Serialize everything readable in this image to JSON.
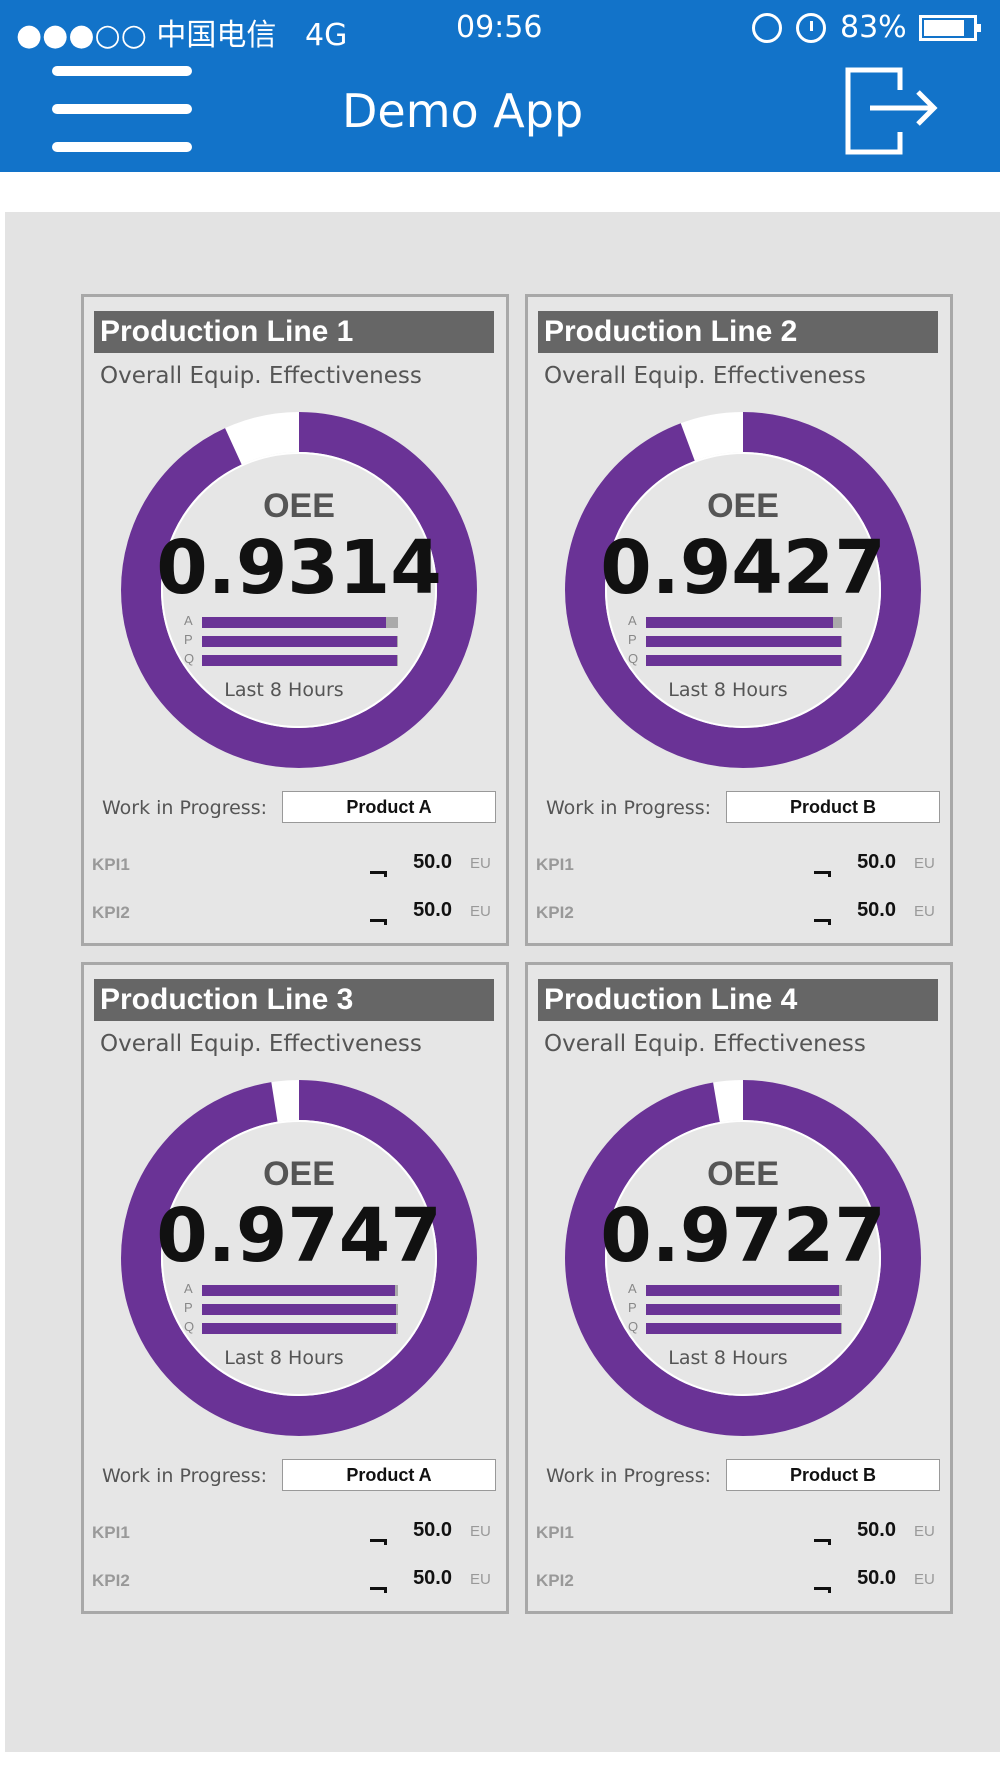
{
  "status_bar": {
    "carrier": "●●●○○ 中国电信",
    "network": "4G",
    "time": "09:56",
    "battery": "83%"
  },
  "header": {
    "title": "Demo App"
  },
  "colors": {
    "header": "#1273c9",
    "gauge": "#6a3396",
    "panel_header": "#666666"
  },
  "panels": [
    {
      "title": "Production Line 1",
      "subtitle": "Overall Equip. Effectiveness",
      "oee_label": "OEE",
      "oee": "0.9314",
      "oee_fraction": 0.9314,
      "bars": [
        {
          "letter": "A",
          "fraction": 0.94
        },
        {
          "letter": "P",
          "fraction": 0.995
        },
        {
          "letter": "Q",
          "fraction": 0.995
        }
      ],
      "period": "Last 8 Hours",
      "wip_label": "Work in Progress:",
      "wip": "Product A",
      "kpis": [
        {
          "name": "KPI1",
          "value": "50.0",
          "unit": "EU"
        },
        {
          "name": "KPI2",
          "value": "50.0",
          "unit": "EU"
        }
      ]
    },
    {
      "title": "Production Line 2",
      "subtitle": "Overall Equip. Effectiveness",
      "oee_label": "OEE",
      "oee": "0.9427",
      "oee_fraction": 0.9427,
      "bars": [
        {
          "letter": "A",
          "fraction": 0.955
        },
        {
          "letter": "P",
          "fraction": 0.995
        },
        {
          "letter": "Q",
          "fraction": 0.995
        }
      ],
      "period": "Last 8 Hours",
      "wip_label": "Work in Progress:",
      "wip": "Product B",
      "kpis": [
        {
          "name": "KPI1",
          "value": "50.0",
          "unit": "EU"
        },
        {
          "name": "KPI2",
          "value": "50.0",
          "unit": "EU"
        }
      ]
    },
    {
      "title": "Production Line 3",
      "subtitle": "Overall Equip. Effectiveness",
      "oee_label": "OEE",
      "oee": "0.9747",
      "oee_fraction": 0.9747,
      "bars": [
        {
          "letter": "A",
          "fraction": 0.985
        },
        {
          "letter": "P",
          "fraction": 0.99
        },
        {
          "letter": "Q",
          "fraction": 0.99
        }
      ],
      "period": "Last 8 Hours",
      "wip_label": "Work in Progress:",
      "wip": "Product A",
      "kpis": [
        {
          "name": "KPI1",
          "value": "50.0",
          "unit": "EU"
        },
        {
          "name": "KPI2",
          "value": "50.0",
          "unit": "EU"
        }
      ]
    },
    {
      "title": "Production Line 4",
      "subtitle": "Overall Equip. Effectiveness",
      "oee_label": "OEE",
      "oee": "0.9727",
      "oee_fraction": 0.9727,
      "bars": [
        {
          "letter": "A",
          "fraction": 0.985
        },
        {
          "letter": "P",
          "fraction": 0.99
        },
        {
          "letter": "Q",
          "fraction": 0.995
        }
      ],
      "period": "Last 8 Hours",
      "wip_label": "Work in Progress:",
      "wip": "Product B",
      "kpis": [
        {
          "name": "KPI1",
          "value": "50.0",
          "unit": "EU"
        },
        {
          "name": "KPI2",
          "value": "50.0",
          "unit": "EU"
        }
      ]
    }
  ]
}
